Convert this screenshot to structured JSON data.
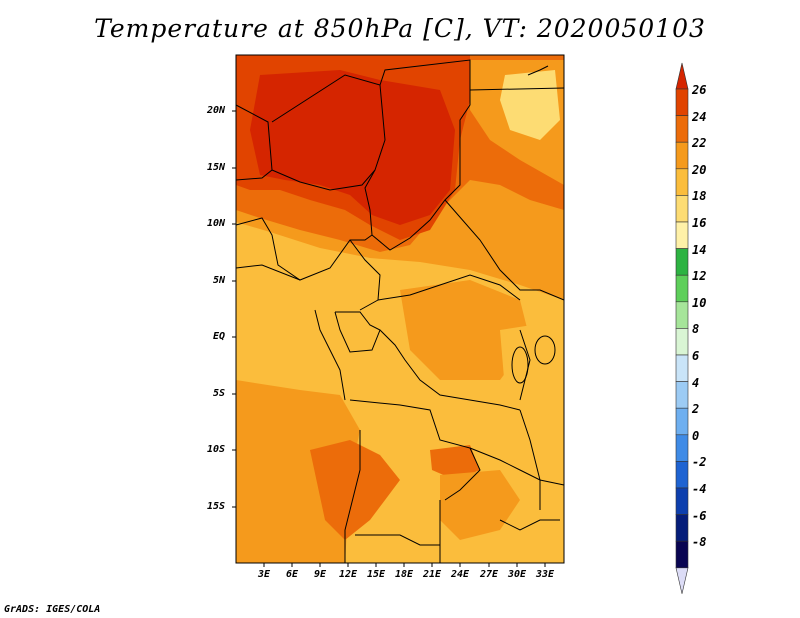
{
  "title": "Temperature at 850hPa [C], VT: 2020050103",
  "credit": "GrADS: IGES/COLA",
  "map": {
    "lat_labels": [
      "20N",
      "15N",
      "10N",
      "5N",
      "EQ",
      "5S",
      "10S",
      "15S"
    ],
    "lon_labels": [
      "3E",
      "6E",
      "9E",
      "12E",
      "15E",
      "18E",
      "21E",
      "24E",
      "27E",
      "30E",
      "33E"
    ]
  },
  "colorbar": {
    "levels": [
      "26",
      "24",
      "22",
      "20",
      "18",
      "16",
      "14",
      "12",
      "10",
      "8",
      "6",
      "4",
      "2",
      "0",
      "-2",
      "-4",
      "-6",
      "-8"
    ],
    "colors": [
      "#d52500",
      "#e14400",
      "#ec6c0a",
      "#f59a1c",
      "#fbbd3c",
      "#fddc73",
      "#fff1a8",
      "#2db342",
      "#5ecf5a",
      "#a6e59a",
      "#d9f5d4",
      "#c9e4f8",
      "#9ccbf4",
      "#6eaff0",
      "#3f8be6",
      "#1e63d2",
      "#0d3fae",
      "#051d7a",
      "#090552",
      "#dcdcf6"
    ]
  },
  "colors": {
    "hottest": "#d52500",
    "hot": "#e14400",
    "warm": "#ec6c0a",
    "mild": "#f59a1c",
    "moderate": "#fbbd3c",
    "cool": "#fddc73",
    "border": "#000000"
  }
}
